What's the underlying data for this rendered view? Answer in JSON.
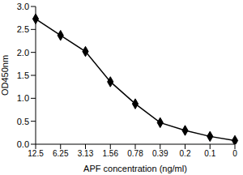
{
  "chart_data": {
    "type": "line",
    "x_label": "APF concentration (ng/ml)",
    "y_label": "OD450nm",
    "categories": [
      "12.5",
      "6.25",
      "3.13",
      "1.56",
      "0.78",
      "0.39",
      "0.2",
      "0.1",
      "0"
    ],
    "series": [
      {
        "name": "OD450nm",
        "color": "#000000",
        "marker": "diamond",
        "values": [
          2.73,
          2.37,
          2.02,
          1.36,
          0.88,
          0.47,
          0.3,
          0.17,
          0.08
        ]
      }
    ],
    "ylim": [
      0,
      3
    ],
    "yticks": [
      {
        "value": 0,
        "label": "0.0"
      },
      0.5,
      {
        "value": 1,
        "label": "1.0"
      },
      1.5,
      {
        "value": 2,
        "label": "2.0"
      },
      2.5,
      {
        "value": 3,
        "label": "3.0"
      }
    ],
    "grid": false
  }
}
